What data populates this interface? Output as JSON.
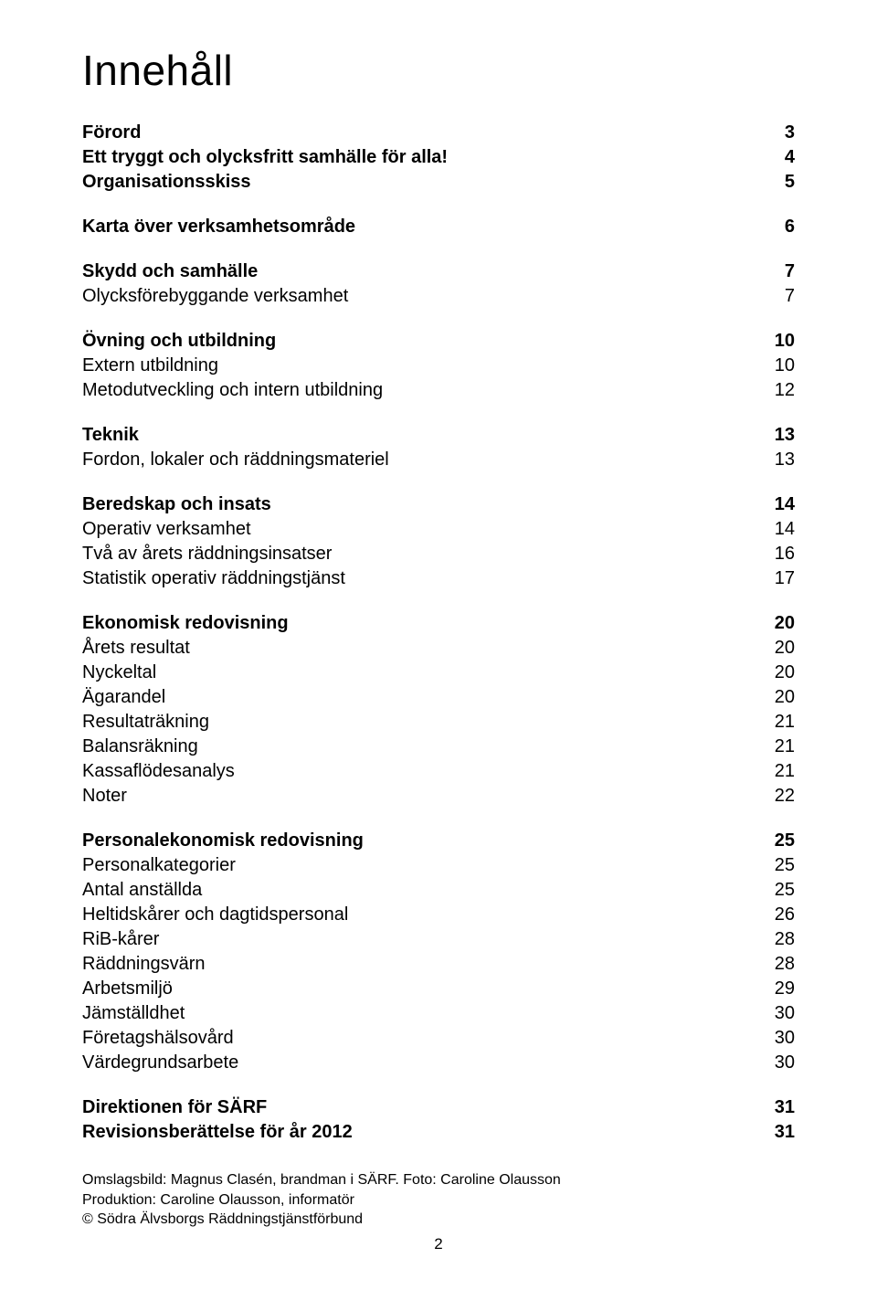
{
  "title": "Innehåll",
  "page_number": "2",
  "toc": [
    {
      "label": "Förord",
      "page": "3",
      "bold": true
    },
    {
      "label": "Ett tryggt och olycksfritt samhälle för alla!",
      "page": "4",
      "bold": true
    },
    {
      "label": "Organisationsskiss",
      "page": "5",
      "bold": true
    },
    {
      "gap": true
    },
    {
      "label": "Karta över verksamhetsområde",
      "page": "6",
      "bold": true
    },
    {
      "gap": true
    },
    {
      "label": "Skydd och samhälle",
      "page": "7",
      "bold": true
    },
    {
      "label": "Olycksförebyggande verksamhet",
      "page": "7",
      "bold": false
    },
    {
      "gap": true
    },
    {
      "label": "Övning och utbildning",
      "page": "10",
      "bold": true
    },
    {
      "label": "Extern utbildning",
      "page": "10",
      "bold": false
    },
    {
      "label": "Metodutveckling och intern utbildning",
      "page": "12",
      "bold": false
    },
    {
      "gap": true
    },
    {
      "label": "Teknik",
      "page": "13",
      "bold": true
    },
    {
      "label": "Fordon, lokaler och räddningsmateriel",
      "page": "13",
      "bold": false
    },
    {
      "gap": true
    },
    {
      "label": "Beredskap och insats",
      "page": "14",
      "bold": true
    },
    {
      "label": "Operativ verksamhet",
      "page": "14",
      "bold": false
    },
    {
      "label": "Två av årets räddningsinsatser",
      "page": "16",
      "bold": false
    },
    {
      "label": "Statistik operativ räddningstjänst",
      "page": "17",
      "bold": false
    },
    {
      "gap": true
    },
    {
      "label": "Ekonomisk redovisning",
      "page": "20",
      "bold": true
    },
    {
      "label": "Årets resultat",
      "page": "20",
      "bold": false
    },
    {
      "label": "Nyckeltal",
      "page": "20",
      "bold": false
    },
    {
      "label": "Ägarandel",
      "page": "20",
      "bold": false
    },
    {
      "label": "Resultaträkning",
      "page": "21",
      "bold": false
    },
    {
      "label": "Balansräkning",
      "page": "21",
      "bold": false
    },
    {
      "label": "Kassaflödesanalys",
      "page": "21",
      "bold": false
    },
    {
      "label": "Noter",
      "page": "22",
      "bold": false
    },
    {
      "gap": true
    },
    {
      "label": "Personalekonomisk redovisning",
      "page": "25",
      "bold": true
    },
    {
      "label": "Personalkategorier",
      "page": "25",
      "bold": false
    },
    {
      "label": "Antal anställda",
      "page": "25",
      "bold": false
    },
    {
      "label": "Heltidskårer och dagtidspersonal",
      "page": "26",
      "bold": false
    },
    {
      "label": "RiB-kårer",
      "page": "28",
      "bold": false
    },
    {
      "label": "Räddningsvärn",
      "page": "28",
      "bold": false
    },
    {
      "label": "Arbetsmiljö",
      "page": "29",
      "bold": false
    },
    {
      "label": "Jämställdhet",
      "page": "30",
      "bold": false
    },
    {
      "label": "Företagshälsovård",
      "page": "30",
      "bold": false
    },
    {
      "label": "Värdegrundsarbete",
      "page": "30",
      "bold": false
    },
    {
      "gap": true
    },
    {
      "label": "Direktionen för SÄRF",
      "page": "31",
      "bold": true
    },
    {
      "label": "Revisionsberättelse för år 2012",
      "page": "31",
      "bold": true
    }
  ],
  "credits": {
    "line1": "Omslagsbild: Magnus Clasén, brandman i SÄRF. Foto: Caroline Olausson",
    "line2": "Produktion: Caroline Olausson, informatör",
    "line3": "© Södra Älvsborgs Räddningstjänstförbund"
  }
}
